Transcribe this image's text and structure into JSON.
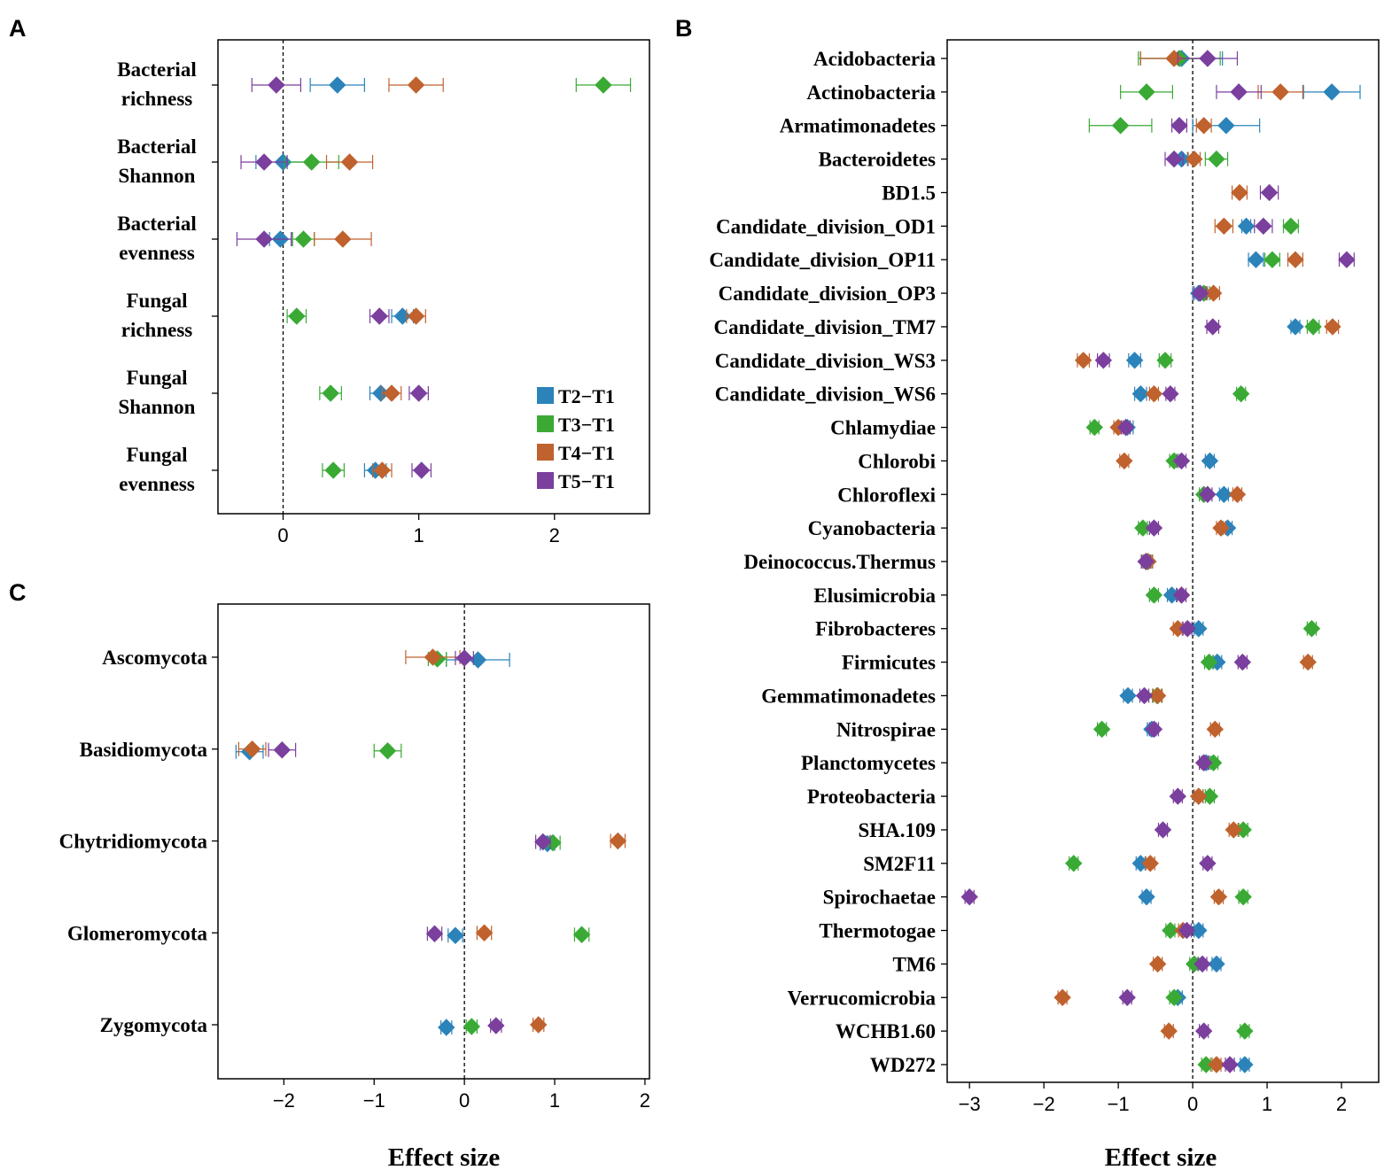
{
  "series_meta": [
    {
      "name": "T2−T1",
      "color": "#2b83ba"
    },
    {
      "name": "T3−T1",
      "color": "#3aaa35"
    },
    {
      "name": "T4−T1",
      "color": "#c0622e"
    },
    {
      "name": "T5−T1",
      "color": "#7b3f9e"
    }
  ],
  "chart_data": [
    {
      "panel": "A",
      "type": "scatter",
      "title": "",
      "xlabel": "",
      "ylabel": "",
      "xlim": [
        -0.48,
        2.7
      ],
      "xticks": [
        0,
        1,
        2
      ],
      "zero_line": true,
      "legend": "bottom-right",
      "categories": [
        "Bacterial richness",
        "Bacterial Shannon",
        "Bacterial evenness",
        "Fungal richness",
        "Fungal Shannon",
        "Fungal evenness"
      ],
      "category_lines": [
        [
          "Bacterial",
          "richness"
        ],
        [
          "Bacterial",
          "Shannon"
        ],
        [
          "Bacterial",
          "evenness"
        ],
        [
          "Fungal",
          "richness"
        ],
        [
          "Fungal",
          "Shannon"
        ],
        [
          "Fungal",
          "evenness"
        ]
      ],
      "series": [
        {
          "name": "T2−T1",
          "values": [
            0.4,
            0.0,
            -0.02,
            0.88,
            0.72,
            0.68
          ],
          "errors": [
            0.2,
            0.2,
            0.08,
            0.08,
            0.08,
            0.08
          ]
        },
        {
          "name": "T3−T1",
          "values": [
            2.36,
            0.21,
            0.15,
            0.1,
            0.35,
            0.37
          ],
          "errors": [
            0.2,
            0.2,
            0.08,
            0.07,
            0.08,
            0.08
          ]
        },
        {
          "name": "T4−T1",
          "values": [
            0.98,
            0.49,
            0.44,
            0.98,
            0.8,
            0.73
          ],
          "errors": [
            0.2,
            0.17,
            0.21,
            0.07,
            0.07,
            0.07
          ]
        },
        {
          "name": "T5−T1",
          "values": [
            -0.05,
            -0.14,
            -0.14,
            0.71,
            1.0,
            1.02
          ],
          "errors": [
            0.18,
            0.17,
            0.2,
            0.07,
            0.07,
            0.07
          ]
        }
      ]
    },
    {
      "panel": "B",
      "type": "scatter",
      "title": "",
      "xlabel": "Effect size",
      "ylabel": "",
      "xlim": [
        -3.3,
        2.5
      ],
      "xticks": [
        -3,
        -2,
        -1,
        0,
        1,
        2
      ],
      "zero_line": true,
      "categories": [
        "Acidobacteria",
        "Actinobacteria",
        "Armatimonadetes",
        "Bacteroidetes",
        "BD1.5",
        "Candidate_division_OD1",
        "Candidate_division_OP11",
        "Candidate_division_OP3",
        "Candidate_division_TM7",
        "Candidate_division_WS3",
        "Candidate_division_WS6",
        "Chlamydiae",
        "Chlorobi",
        "Chloroflexi",
        "Cyanobacteria",
        "Deinococcus.Thermus",
        "Elusimicrobia",
        "Fibrobacteres",
        "Firmicutes",
        "Gemmatimonadetes",
        "Nitrospirae",
        "Planctomycetes",
        "Proteobacteria",
        "SHA.109",
        "SM2F11",
        "Spirochaetae",
        "Thermotogae",
        "TM6",
        "Verrucomicrobia",
        "WCHB1.60",
        "WD272"
      ],
      "series": [
        {
          "name": "T2−T1",
          "values": [
            -0.15,
            1.87,
            0.45,
            -0.15,
            null,
            0.72,
            0.85,
            0.08,
            1.38,
            -0.78,
            -0.7,
            -0.88,
            0.23,
            0.42,
            0.47,
            -0.6,
            -0.28,
            0.08,
            0.33,
            -0.87,
            -0.55,
            0.18,
            0.08,
            null,
            -0.7,
            -0.62,
            0.08,
            0.32,
            -0.2,
            null,
            0.7
          ],
          "errors": [
            0.55,
            0.38,
            0.45,
            0.08,
            null,
            0.06,
            0.1,
            0.08,
            0.06,
            0.08,
            0.08,
            0.08,
            0.06,
            0.06,
            0.06,
            0.06,
            0.06,
            0.06,
            0.06,
            0.06,
            0.06,
            0.06,
            0.06,
            null,
            0.06,
            0.06,
            0.06,
            0.06,
            0.06,
            null,
            0.06
          ]
        },
        {
          "name": "T3−T1",
          "values": [
            -0.18,
            -0.62,
            -0.97,
            0.32,
            null,
            1.32,
            1.07,
            0.15,
            1.62,
            -0.37,
            0.65,
            -1.32,
            -0.25,
            0.15,
            -0.67,
            -0.62,
            -0.52,
            1.6,
            0.22,
            -0.48,
            -1.22,
            0.28,
            0.23,
            0.68,
            -1.6,
            0.68,
            -0.3,
            0.02,
            -0.25,
            0.7,
            0.18
          ],
          "errors": [
            0.55,
            0.35,
            0.42,
            0.15,
            null,
            0.1,
            0.1,
            0.08,
            0.08,
            0.08,
            0.06,
            0.06,
            0.06,
            0.06,
            0.06,
            0.06,
            0.06,
            0.06,
            0.06,
            0.06,
            0.06,
            0.06,
            0.06,
            0.06,
            0.06,
            0.06,
            0.06,
            0.06,
            0.06,
            0.06,
            0.06
          ]
        },
        {
          "name": "T4−T1",
          "values": [
            -0.25,
            1.18,
            0.15,
            0.02,
            0.63,
            0.42,
            1.38,
            0.28,
            1.88,
            -1.47,
            -0.52,
            -1.0,
            -0.92,
            0.6,
            0.38,
            -0.6,
            -0.15,
            -0.2,
            1.55,
            -0.47,
            0.3,
            0.15,
            0.08,
            0.55,
            -0.57,
            0.35,
            -0.13,
            -0.47,
            -1.75,
            -0.32,
            0.32
          ],
          "errors": [
            0.45,
            0.3,
            0.1,
            0.08,
            0.1,
            0.12,
            0.1,
            0.08,
            0.08,
            0.08,
            0.06,
            0.06,
            0.06,
            0.06,
            0.06,
            0.06,
            0.06,
            0.06,
            0.06,
            0.06,
            0.06,
            0.06,
            0.06,
            0.06,
            0.06,
            0.06,
            0.06,
            0.06,
            0.06,
            0.06,
            0.06
          ]
        },
        {
          "name": "T5−T1",
          "values": [
            0.2,
            0.62,
            -0.18,
            -0.25,
            1.03,
            0.95,
            2.07,
            0.1,
            0.27,
            -1.2,
            -0.3,
            -0.9,
            -0.15,
            0.2,
            -0.52,
            -0.63,
            -0.15,
            -0.07,
            0.67,
            -0.65,
            -0.52,
            0.15,
            -0.2,
            -0.4,
            0.2,
            -3.0,
            -0.08,
            0.13,
            -0.88,
            0.15,
            0.5
          ],
          "errors": [
            0.4,
            0.3,
            0.1,
            0.12,
            0.12,
            0.12,
            0.1,
            0.08,
            0.08,
            0.08,
            0.06,
            0.06,
            0.06,
            0.06,
            0.06,
            0.06,
            0.06,
            0.06,
            0.06,
            0.06,
            0.06,
            0.06,
            0.06,
            0.06,
            0.06,
            0.06,
            0.06,
            0.06,
            0.06,
            0.06,
            0.06
          ]
        }
      ]
    },
    {
      "panel": "C",
      "type": "scatter",
      "title": "",
      "xlabel": "Effect size",
      "ylabel": "",
      "xlim": [
        -2.73,
        2.05
      ],
      "xticks": [
        -2,
        -1,
        0,
        1,
        2
      ],
      "zero_line": true,
      "categories": [
        "Ascomycota",
        "Basidiomycota",
        "Chytridiomycota",
        "Glomeromycota",
        "Zygomycota"
      ],
      "series": [
        {
          "name": "T2−T1",
          "values": [
            0.15,
            -2.38,
            0.92,
            -0.1,
            -0.2
          ],
          "errors": [
            0.35,
            0.15,
            0.08,
            0.08,
            0.06
          ]
        },
        {
          "name": "T3−T1",
          "values": [
            -0.3,
            -0.85,
            0.98,
            1.3,
            0.08
          ],
          "errors": [
            0.1,
            0.15,
            0.08,
            0.08,
            0.06
          ]
        },
        {
          "name": "T4−T1",
          "values": [
            -0.35,
            -2.35,
            1.7,
            0.22,
            0.82
          ],
          "errors": [
            0.3,
            0.15,
            0.08,
            0.08,
            0.06
          ]
        },
        {
          "name": "T5−T1",
          "values": [
            0.0,
            -2.02,
            0.87,
            -0.33,
            0.35
          ],
          "errors": [
            0.1,
            0.15,
            0.08,
            0.08,
            0.06
          ]
        }
      ]
    }
  ]
}
